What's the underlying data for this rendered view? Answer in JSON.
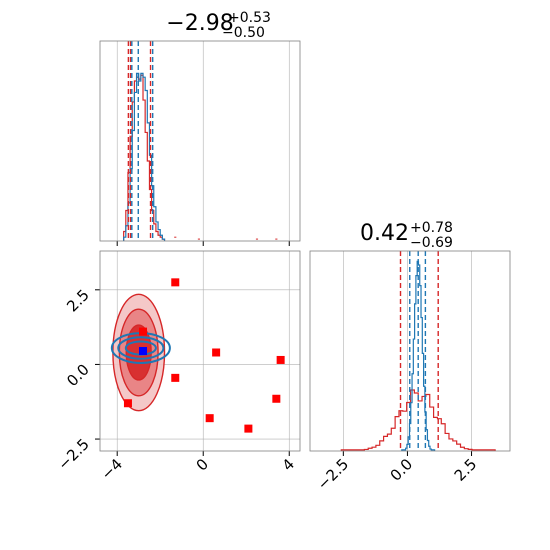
{
  "figure": {
    "colors": {
      "red": "#d62728",
      "blue": "#1f77b4",
      "marker_red": "#ff0000",
      "marker_blue": "#0000ff",
      "grid": "#b0b0b0",
      "spine": "#808080"
    }
  },
  "chart_data": [
    {
      "type": "histogram",
      "panel": "top-left",
      "title": {
        "median": "−2.98",
        "plus": "+0.53",
        "minus": "−0.50"
      },
      "xlim": [
        -4.8,
        4.5
      ],
      "grid": true,
      "bins_x": [
        -3.65,
        -3.55,
        -3.45,
        -3.35,
        -3.25,
        -3.15,
        -3.05,
        -2.95,
        -2.85,
        -2.75,
        -2.65,
        -2.55,
        -2.45,
        -2.35,
        -2.25,
        -2.15,
        -2.05,
        -1.95,
        -1.85
      ],
      "series": [
        {
          "color": "red",
          "density": [
            0.05,
            0.16,
            0.36,
            0.55,
            0.73,
            0.84,
            0.86,
            0.85,
            0.87,
            0.74,
            0.57,
            0.42,
            0.27,
            0.16,
            0.09,
            0.05,
            0.03,
            0.02,
            0.01
          ]
        },
        {
          "color": "blue",
          "density": [
            0.02,
            0.08,
            0.2,
            0.38,
            0.58,
            0.78,
            0.88,
            0.84,
            0.88,
            0.86,
            0.79,
            0.62,
            0.45,
            0.29,
            0.18,
            0.1,
            0.06,
            0.03,
            0.01
          ]
        }
      ],
      "outlier_bins": [
        [
          -1.3,
          0.02
        ],
        [
          -0.2,
          0.01
        ],
        [
          2.5,
          0.01
        ],
        [
          3.4,
          0.01
        ]
      ],
      "quantile_lines": {
        "red": [
          -3.48,
          -3.38,
          -2.45
        ],
        "blue": [
          -3.32,
          -3.02,
          -2.35
        ]
      },
      "xticks": [
        -4,
        0,
        4
      ],
      "tick_labels_shown": false
    },
    {
      "type": "histogram",
      "panel": "bottom-right",
      "title": {
        "median": "0.42",
        "plus": "+0.78",
        "minus": "−0.69"
      },
      "xlim": [
        -3.8,
        4.0
      ],
      "grid": true,
      "xticks": [
        -2.5,
        0.0,
        2.5
      ],
      "xtick_labels": [
        "−2.5",
        "0.0",
        "2.5"
      ],
      "quantile_lines": {
        "red": [
          -0.27,
          1.2
        ],
        "blue": [
          0.09,
          0.42,
          0.7
        ]
      },
      "series": [
        {
          "color": "red",
          "shape": "broad",
          "center": 0.42,
          "spread": 0.75,
          "peak": 0.3
        },
        {
          "color": "blue",
          "shape": "narrow",
          "center": 0.42,
          "spread": 0.16,
          "peak": 1.0
        }
      ]
    },
    {
      "type": "scatter",
      "panel": "bottom-left",
      "xlim": [
        -4.8,
        4.5
      ],
      "ylim": [
        -2.9,
        3.8
      ],
      "grid": true,
      "xticks": [
        -4,
        0,
        4
      ],
      "xtick_labels": [
        "−4",
        "0",
        "4"
      ],
      "yticks": [
        -2.5,
        0.0,
        2.5
      ],
      "ytick_labels": [
        "−2.5",
        "0.0",
        "2.5"
      ],
      "contours": {
        "red": {
          "center": [
            -3.0,
            0.4
          ],
          "rx": [
            1.2,
            0.9,
            0.58
          ],
          "ry": [
            1.95,
            1.45,
            0.92
          ]
        },
        "blue": {
          "center": [
            -2.9,
            0.55
          ],
          "rx": [
            1.35,
            1.05,
            0.7
          ],
          "ry": [
            0.5,
            0.36,
            0.22
          ]
        }
      },
      "markers": [
        {
          "x": -1.3,
          "y": 2.75,
          "color": "marker_red"
        },
        {
          "x": -2.8,
          "y": 1.1,
          "color": "marker_red"
        },
        {
          "x": -2.8,
          "y": 0.45,
          "color": "marker_blue"
        },
        {
          "x": 0.6,
          "y": 0.4,
          "color": "marker_red"
        },
        {
          "x": 3.6,
          "y": 0.15,
          "color": "marker_red"
        },
        {
          "x": -1.3,
          "y": -0.45,
          "color": "marker_red"
        },
        {
          "x": -3.5,
          "y": -1.3,
          "color": "marker_red"
        },
        {
          "x": 3.4,
          "y": -1.15,
          "color": "marker_red"
        },
        {
          "x": 0.3,
          "y": -1.8,
          "color": "marker_red"
        },
        {
          "x": 2.1,
          "y": -2.15,
          "color": "marker_red"
        }
      ]
    }
  ]
}
